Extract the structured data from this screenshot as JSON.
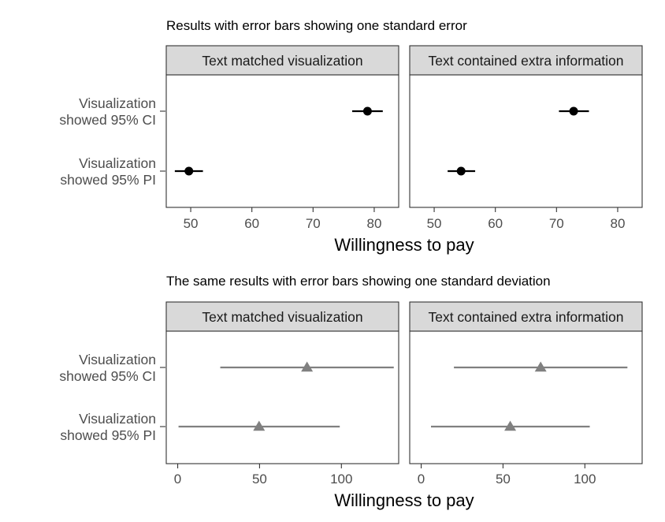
{
  "chart_data": [
    {
      "type": "scatter",
      "title": "Results with error bars showing one standard error",
      "xlabel": "Willingness to pay",
      "ylabel": "",
      "xlim": [
        46,
        84
      ],
      "xticks": [
        50,
        60,
        70,
        80
      ],
      "categories": [
        "Visualization\nshowed 95% CI",
        "Visualization\nshowed 95% PI"
      ],
      "marker": "circle",
      "color": "#000000",
      "facets": [
        {
          "label": "Text matched visualization",
          "points": [
            {
              "category": "Visualization\nshowed 95% CI",
              "value": 78.9,
              "low": 76.4,
              "high": 81.4
            },
            {
              "category": "Visualization\nshowed 95% PI",
              "value": 49.7,
              "low": 47.4,
              "high": 52.0
            }
          ]
        },
        {
          "label": "Text contained extra information",
          "points": [
            {
              "category": "Visualization\nshowed 95% CI",
              "value": 72.8,
              "low": 70.4,
              "high": 75.3
            },
            {
              "category": "Visualization\nshowed 95% PI",
              "value": 54.4,
              "low": 52.2,
              "high": 56.7
            }
          ]
        }
      ],
      "grid": false
    },
    {
      "type": "scatter",
      "title": "The same results with error bars showing one standard deviation",
      "xlabel": "Willingness to pay",
      "ylabel": "",
      "xlim": [
        -7,
        135
      ],
      "xticks": [
        0,
        50,
        100
      ],
      "categories": [
        "Visualization\nshowed 95% CI",
        "Visualization\nshowed 95% PI"
      ],
      "marker": "triangle",
      "color": "#808080",
      "facets": [
        {
          "label": "Text matched visualization",
          "points": [
            {
              "category": "Visualization\nshowed 95% CI",
              "value": 79,
              "low": 26,
              "high": 132
            },
            {
              "category": "Visualization\nshowed 95% PI",
              "value": 49.7,
              "low": 0.5,
              "high": 99
            }
          ]
        },
        {
          "label": "Text contained extra information",
          "points": [
            {
              "category": "Visualization\nshowed 95% CI",
              "value": 73,
              "low": 20,
              "high": 126
            },
            {
              "category": "Visualization\nshowed 95% PI",
              "value": 54.4,
              "low": 6,
              "high": 103
            }
          ]
        }
      ],
      "grid": false
    }
  ]
}
